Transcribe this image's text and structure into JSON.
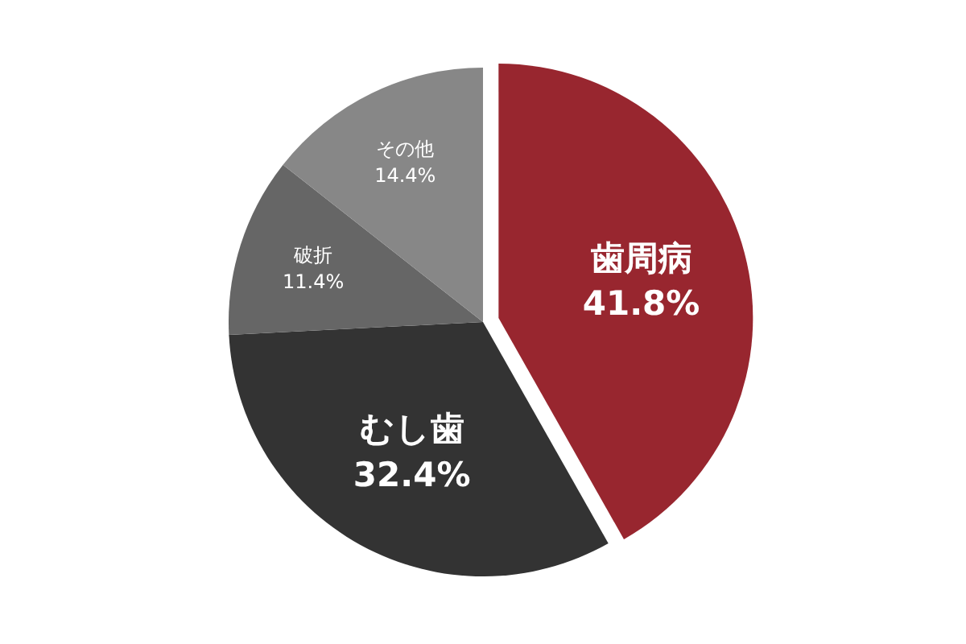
{
  "chart_data": {
    "type": "pie",
    "categories": [
      "歯周病",
      "むし歯",
      "破折",
      "その他"
    ],
    "values": [
      41.8,
      32.4,
      11.4,
      14.4
    ],
    "value_labels": [
      "41.8%",
      "32.4%",
      "11.4%",
      "14.4%"
    ],
    "colors": [
      "#98262f",
      "#333333",
      "#666666",
      "#878787"
    ]
  }
}
